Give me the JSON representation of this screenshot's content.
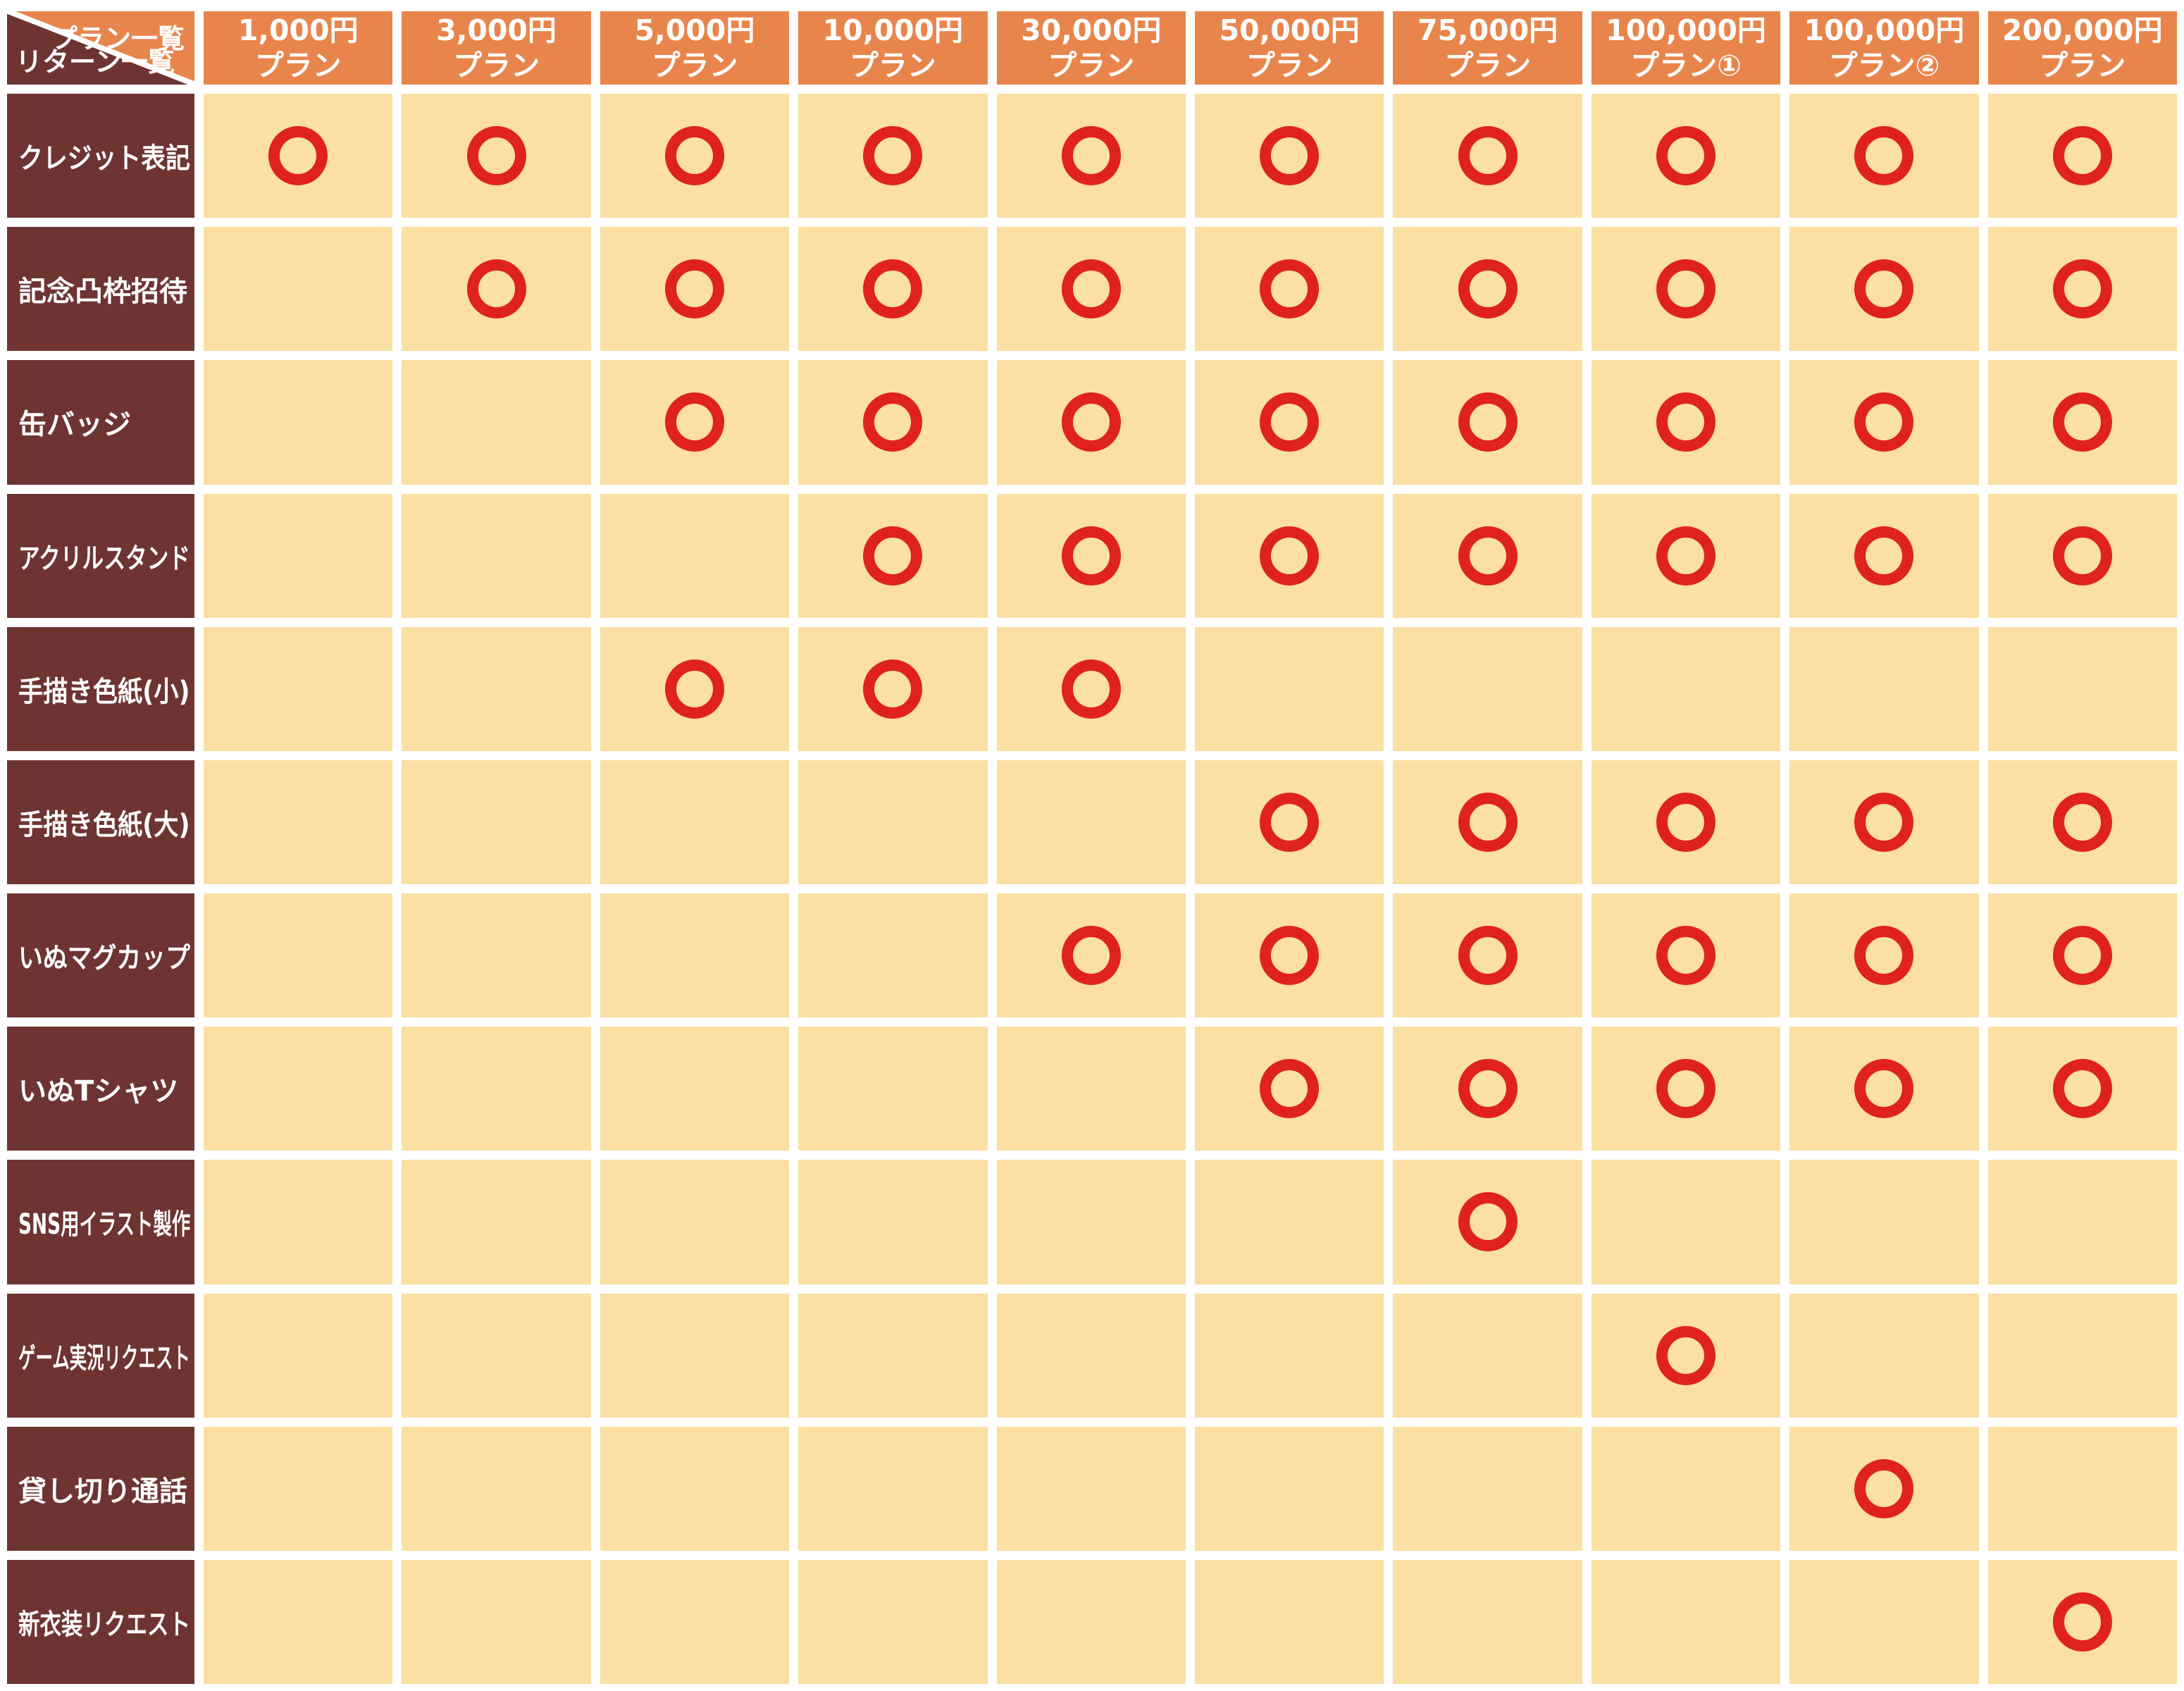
{
  "chart_data": {
    "type": "table",
    "corner": {
      "plans_label": "プラン一覧",
      "returns_label": "リターン一覧"
    },
    "columns": [
      {
        "price": "1,000円",
        "suffix": "プラン"
      },
      {
        "price": "3,000円",
        "suffix": "プラン"
      },
      {
        "price": "5,000円",
        "suffix": "プラン"
      },
      {
        "price": "10,000円",
        "suffix": "プラン"
      },
      {
        "price": "30,000円",
        "suffix": "プラン"
      },
      {
        "price": "50,000円",
        "suffix": "プラン"
      },
      {
        "price": "75,000円",
        "suffix": "プラン"
      },
      {
        "price": "100,000円",
        "suffix": "プラン①"
      },
      {
        "price": "100,000円",
        "suffix": "プラン②"
      },
      {
        "price": "200,000円",
        "suffix": "プラン"
      }
    ],
    "rows": [
      {
        "label": "クレジット表記",
        "marks": [
          1,
          1,
          1,
          1,
          1,
          1,
          1,
          1,
          1,
          1
        ]
      },
      {
        "label": "記念凸枠招待",
        "marks": [
          0,
          1,
          1,
          1,
          1,
          1,
          1,
          1,
          1,
          1
        ]
      },
      {
        "label": "缶バッジ",
        "marks": [
          0,
          0,
          1,
          1,
          1,
          1,
          1,
          1,
          1,
          1
        ]
      },
      {
        "label": "アクリルスタンド",
        "marks": [
          0,
          0,
          0,
          1,
          1,
          1,
          1,
          1,
          1,
          1
        ]
      },
      {
        "label": "手描き色紙(小)",
        "marks": [
          0,
          0,
          1,
          1,
          1,
          0,
          0,
          0,
          0,
          0
        ]
      },
      {
        "label": "手描き色紙(大)",
        "marks": [
          0,
          0,
          0,
          0,
          0,
          1,
          1,
          1,
          1,
          1
        ]
      },
      {
        "label": "いぬマグカップ",
        "marks": [
          0,
          0,
          0,
          0,
          1,
          1,
          1,
          1,
          1,
          1
        ]
      },
      {
        "label": "いぬTシャツ",
        "marks": [
          0,
          0,
          0,
          0,
          0,
          1,
          1,
          1,
          1,
          1
        ]
      },
      {
        "label": "SNS用イラスト製作",
        "marks": [
          0,
          0,
          0,
          0,
          0,
          0,
          1,
          0,
          0,
          0
        ]
      },
      {
        "label": "ゲーム実況リクエスト",
        "marks": [
          0,
          0,
          0,
          0,
          0,
          0,
          0,
          1,
          0,
          0
        ]
      },
      {
        "label": "貸し切り通話",
        "marks": [
          0,
          0,
          0,
          0,
          0,
          0,
          0,
          0,
          1,
          0
        ]
      },
      {
        "label": "新衣装リクエスト",
        "marks": [
          0,
          0,
          0,
          0,
          0,
          0,
          0,
          0,
          0,
          1
        ]
      }
    ],
    "mark_symbol": "circle",
    "colors": {
      "header_orange": "#E8854C",
      "row_brown": "#6E3432",
      "cell_cream": "#FBDFA3",
      "circle_red": "#DF231C",
      "background": "#FFFFFF"
    }
  }
}
